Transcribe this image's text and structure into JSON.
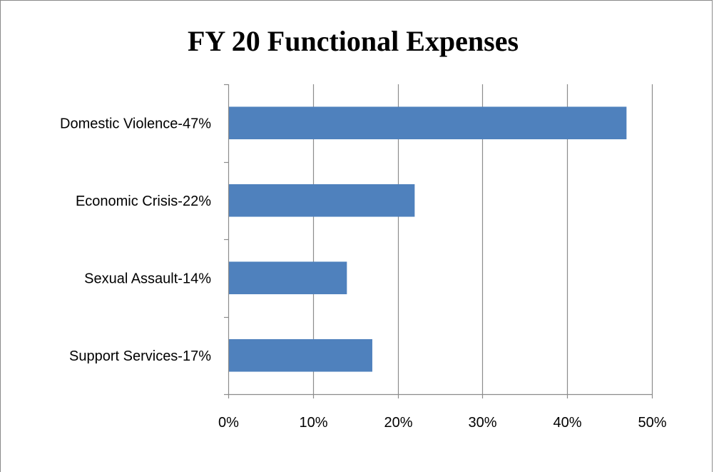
{
  "chart_data": {
    "type": "bar",
    "orientation": "horizontal",
    "title": "FY 20 Functional Expenses",
    "categories": [
      "Domestic Violence-47%",
      "Economic Crisis-22%",
      "Sexual Assault-14%",
      "Support Services-17%"
    ],
    "values": [
      47,
      22,
      14,
      17
    ],
    "xlim": [
      0,
      50
    ],
    "x_ticks": [
      "0%",
      "10%",
      "20%",
      "30%",
      "40%",
      "50%"
    ],
    "grid": "vertical",
    "legend": "none",
    "bar_color": "#4F81BD",
    "grid_color": "#8C8C8C"
  }
}
